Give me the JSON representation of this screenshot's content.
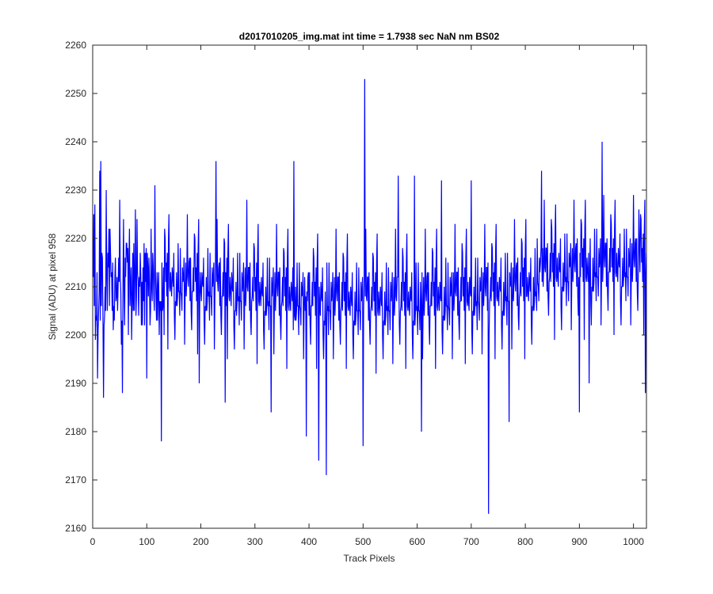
{
  "chart_data": {
    "type": "line",
    "title": "d2017010205_img.mat int time = 1.7938 sec  NaN nm BS02",
    "xlabel": "Track Pixels",
    "ylabel": "Signal (ADU) at pixel 958",
    "xlim": [
      0,
      1024
    ],
    "ylim": [
      2160,
      2260
    ],
    "xticks": [
      0,
      100,
      200,
      300,
      400,
      500,
      600,
      700,
      800,
      900,
      1000
    ],
    "yticks": [
      2160,
      2170,
      2180,
      2190,
      2200,
      2210,
      2220,
      2230,
      2240,
      2250,
      2260
    ],
    "grid": false,
    "legend": "none",
    "line_color": "#0000ff",
    "series": [
      {
        "count": 1024,
        "mean": 2207.5,
        "x_start": 1,
        "x_step": 1,
        "values_key": "noise-profile",
        "spikes": [
          {
            "x": 4,
            "y": 2227
          },
          {
            "x": 9,
            "y": 2191
          },
          {
            "x": 13,
            "y": 2234
          },
          {
            "x": 15,
            "y": 2236
          },
          {
            "x": 20,
            "y": 2187
          },
          {
            "x": 25,
            "y": 2230
          },
          {
            "x": 50,
            "y": 2228
          },
          {
            "x": 55,
            "y": 2188
          },
          {
            "x": 79,
            "y": 2226
          },
          {
            "x": 100,
            "y": 2191
          },
          {
            "x": 115,
            "y": 2231
          },
          {
            "x": 127,
            "y": 2178
          },
          {
            "x": 197,
            "y": 2190
          },
          {
            "x": 228,
            "y": 2236
          },
          {
            "x": 245,
            "y": 2186
          },
          {
            "x": 285,
            "y": 2228
          },
          {
            "x": 330,
            "y": 2184
          },
          {
            "x": 372,
            "y": 2236
          },
          {
            "x": 395,
            "y": 2179
          },
          {
            "x": 418,
            "y": 2174
          },
          {
            "x": 432,
            "y": 2171
          },
          {
            "x": 500,
            "y": 2177
          },
          {
            "x": 503,
            "y": 2253
          },
          {
            "x": 565,
            "y": 2233
          },
          {
            "x": 595,
            "y": 2233
          },
          {
            "x": 608,
            "y": 2180
          },
          {
            "x": 645,
            "y": 2232
          },
          {
            "x": 700,
            "y": 2232
          },
          {
            "x": 732,
            "y": 2163
          },
          {
            "x": 770,
            "y": 2182
          },
          {
            "x": 830,
            "y": 2234
          },
          {
            "x": 900,
            "y": 2184
          },
          {
            "x": 918,
            "y": 2190
          },
          {
            "x": 942,
            "y": 2240
          },
          {
            "x": 1010,
            "y": 2226
          },
          {
            "x": 1022,
            "y": 2188
          }
        ]
      }
    ]
  }
}
